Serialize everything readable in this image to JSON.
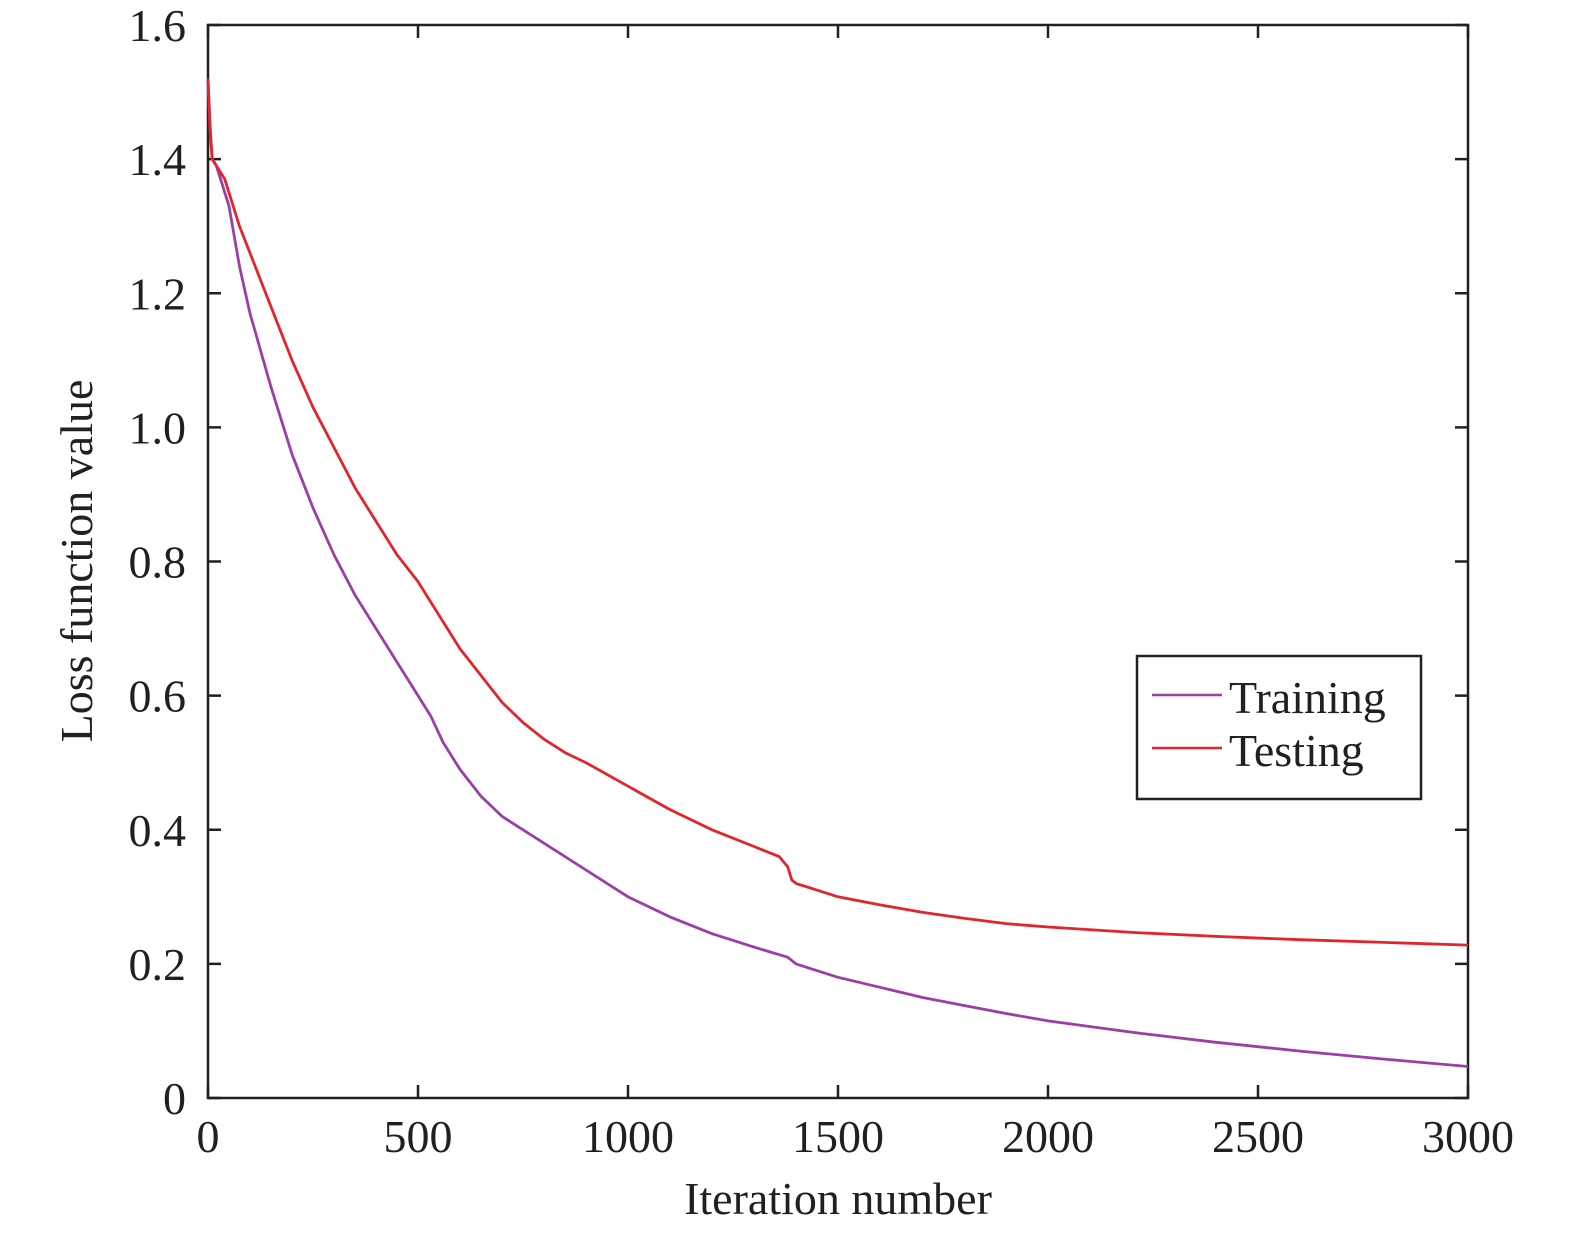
{
  "chart_data": {
    "type": "line",
    "xlabel": "Iteration number",
    "ylabel": "Loss function value",
    "xlim": [
      0,
      3000
    ],
    "ylim": [
      0,
      1.6
    ],
    "xticks": [
      0,
      500,
      1000,
      1500,
      2000,
      2500,
      3000
    ],
    "xtick_labels": [
      "0",
      "500",
      "1000",
      "1500",
      "2000",
      "2500",
      "3000"
    ],
    "yticks": [
      0,
      0.2,
      0.4,
      0.6,
      0.8,
      1.0,
      1.2,
      1.4,
      1.6
    ],
    "ytick_labels": [
      "0",
      "0.2",
      "0.4",
      "0.6",
      "0.8",
      "1.0",
      "1.2",
      "1.4",
      "1.6"
    ],
    "grid": false,
    "legend_position": "center-right",
    "series": [
      {
        "name": "Training",
        "color": "#9b3fa6",
        "x": [
          0,
          5,
          10,
          20,
          30,
          40,
          50,
          75,
          100,
          150,
          200,
          250,
          300,
          350,
          400,
          450,
          500,
          530,
          560,
          600,
          650,
          700,
          750,
          800,
          900,
          1000,
          1100,
          1200,
          1300,
          1380,
          1400,
          1500,
          1600,
          1700,
          1800,
          1900,
          2000,
          2200,
          2400,
          2600,
          2800,
          3000
        ],
        "y": [
          1.52,
          1.45,
          1.4,
          1.39,
          1.37,
          1.35,
          1.33,
          1.24,
          1.17,
          1.06,
          0.96,
          0.88,
          0.81,
          0.75,
          0.7,
          0.65,
          0.6,
          0.57,
          0.53,
          0.49,
          0.45,
          0.42,
          0.4,
          0.38,
          0.34,
          0.3,
          0.27,
          0.245,
          0.225,
          0.21,
          0.2,
          0.18,
          0.165,
          0.15,
          0.138,
          0.126,
          0.115,
          0.098,
          0.083,
          0.07,
          0.058,
          0.047
        ]
      },
      {
        "name": "Testing",
        "color": "#e2252b",
        "x": [
          0,
          5,
          10,
          20,
          30,
          40,
          50,
          75,
          100,
          150,
          200,
          250,
          300,
          350,
          400,
          450,
          500,
          550,
          600,
          650,
          700,
          750,
          800,
          850,
          900,
          1000,
          1100,
          1200,
          1300,
          1360,
          1380,
          1390,
          1400,
          1500,
          1600,
          1700,
          1800,
          1900,
          2000,
          2200,
          2400,
          2600,
          2800,
          3000
        ],
        "y": [
          1.52,
          1.44,
          1.4,
          1.39,
          1.38,
          1.37,
          1.35,
          1.3,
          1.26,
          1.18,
          1.1,
          1.03,
          0.97,
          0.91,
          0.86,
          0.81,
          0.77,
          0.72,
          0.67,
          0.63,
          0.59,
          0.56,
          0.535,
          0.515,
          0.5,
          0.465,
          0.43,
          0.4,
          0.375,
          0.36,
          0.345,
          0.325,
          0.32,
          0.3,
          0.288,
          0.277,
          0.268,
          0.26,
          0.255,
          0.247,
          0.241,
          0.236,
          0.232,
          0.228
        ]
      }
    ]
  }
}
